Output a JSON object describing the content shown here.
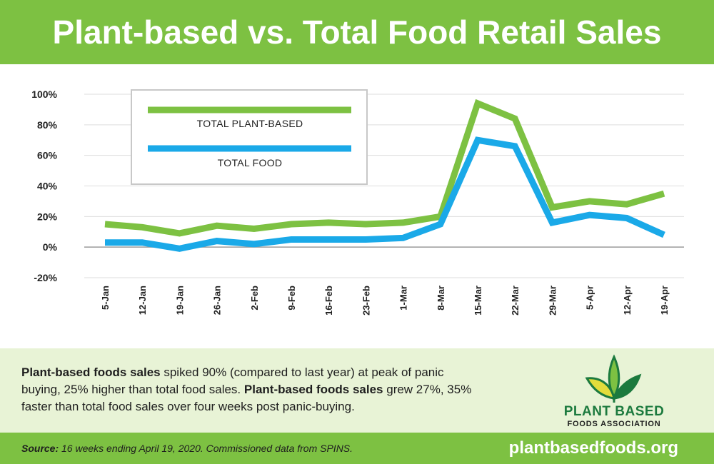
{
  "header": {
    "title": "Plant-based vs. Total Food Retail Sales"
  },
  "chart_data": {
    "type": "line",
    "categories": [
      "5-Jan",
      "12-Jan",
      "19-Jan",
      "26-Jan",
      "2-Feb",
      "9-Feb",
      "16-Feb",
      "23-Feb",
      "1-Mar",
      "8-Mar",
      "15-Mar",
      "22-Mar",
      "29-Mar",
      "5-Apr",
      "12-Apr",
      "19-Apr"
    ],
    "series": [
      {
        "name": "TOTAL PLANT-BASED",
        "color": "#7dc142",
        "values": [
          15,
          13,
          9,
          14,
          12,
          15,
          16,
          15,
          16,
          20,
          94,
          84,
          26,
          30,
          28,
          35
        ]
      },
      {
        "name": "TOTAL FOOD",
        "color": "#1aa9e8",
        "values": [
          3,
          3,
          -1,
          4,
          2,
          5,
          5,
          5,
          6,
          15,
          70,
          66,
          16,
          21,
          19,
          8
        ]
      }
    ],
    "y_ticks": [
      "100%",
      "80%",
      "60%",
      "40%",
      "20%",
      "0%",
      "-20%"
    ],
    "ylim": [
      -20,
      100
    ],
    "grid": true,
    "legend_position": "top-left"
  },
  "info": {
    "bold1": "Plant-based foods sales",
    "text1": " spiked 90% (compared to last year) at peak of panic buying, 25% higher than total food sales. ",
    "bold2": "Plant-based foods sales",
    "text2": " grew 27%, 35% faster than total food sales over four weeks post panic-buying."
  },
  "logo": {
    "name": "PLANT BASED",
    "subtitle": "FOODS ASSOCIATION",
    "icon": "leaves-icon"
  },
  "footer": {
    "source_label": "Source:",
    "source_text": " 16 weeks ending April 19, 2020. Commissioned data from SPINS.",
    "website": "plantbasedfoods.org"
  }
}
